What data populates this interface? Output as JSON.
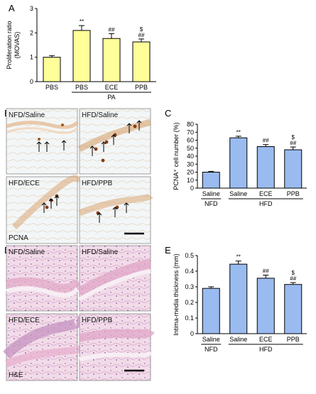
{
  "panels": {
    "A": "A",
    "B": "B",
    "C": "C",
    "D": "D",
    "E": "E"
  },
  "micrographs_B": {
    "labels": [
      "NFD/Saline",
      "HFD/Saline",
      "HFD/ECE",
      "HFD/PPB"
    ],
    "stain": "PCNA"
  },
  "micrographs_D": {
    "labels": [
      "NFD/Saline",
      "HFD/Saline",
      "HFD/ECE",
      "HFD/PPB"
    ],
    "stain": "H&E"
  },
  "colors": {
    "yellow_bar": "#ffff99",
    "blue_bar": "#99bbf0",
    "pcna_bg": "#f3f6f7",
    "he_bg": "#f2dbe8"
  },
  "chart_data": [
    {
      "id": "A",
      "type": "bar",
      "categories": [
        "PBS",
        "PBS",
        "ECE",
        "PPB"
      ],
      "group_label": "PA",
      "values": [
        1.0,
        2.1,
        1.77,
        1.63
      ],
      "errors": [
        0.07,
        0.2,
        0.2,
        0.12
      ],
      "annotations": [
        "",
        "**",
        "##",
        "$\n##"
      ],
      "ylabel": "Proliferation ratio",
      "ylabel_sub": "(MOVAS)",
      "ylim": [
        0,
        3
      ],
      "yticks": [
        "0",
        "1",
        "2",
        "3"
      ]
    },
    {
      "id": "C",
      "type": "bar",
      "categories": [
        "Saline",
        "Saline",
        "ECE",
        "PPB"
      ],
      "groups": [
        "NFD",
        "HFD"
      ],
      "values": [
        20,
        63,
        52,
        48
      ],
      "errors": [
        1,
        2,
        2.5,
        3.5
      ],
      "annotations": [
        "",
        "**",
        "##",
        "$\n##"
      ],
      "ylabel": "PCNA⁺ cell number (%)",
      "ylim": [
        0,
        80
      ],
      "yticks": [
        "0",
        "10",
        "20",
        "30",
        "40",
        "50",
        "60",
        "70",
        "80"
      ]
    },
    {
      "id": "E",
      "type": "bar",
      "categories": [
        "Saline",
        "Saline",
        "ECE",
        "PPB"
      ],
      "groups": [
        "NFD",
        "HFD"
      ],
      "values": [
        0.29,
        0.445,
        0.355,
        0.315
      ],
      "errors": [
        0.01,
        0.02,
        0.02,
        0.012
      ],
      "annotations": [
        "",
        "**",
        "##",
        "$\n##"
      ],
      "ylabel": "Intima-media thickness (mm)",
      "ylim": [
        0,
        0.5
      ],
      "yticks": [
        "0",
        "0.1",
        "0.2",
        "0.3",
        "0.4",
        "0.5"
      ]
    }
  ]
}
